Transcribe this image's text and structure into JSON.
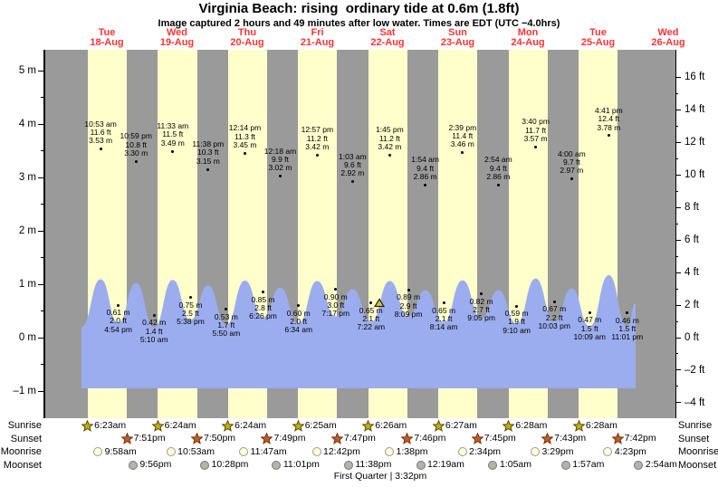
{
  "page": {
    "title": "Virginia Beach: rising  ordinary tide at 0.6m (1.8ft)",
    "subtitle": "Image captured 2 hours and 49 minutes after low water. Times are EDT (UTC −4.0hrs)"
  },
  "colors": {
    "night_band": "#9a9a9a",
    "day_band": "#ffffcc",
    "water": "#9badee",
    "day_label_red": "#ff3333",
    "sunrise_star_fill": "#c3ad0b",
    "sunrise_star_stroke": "#5a4a00",
    "sunset_star_fill": "#bf5f28",
    "sunset_star_stroke": "#73300d",
    "moonrise_fill": "#ffffd8",
    "moonrise_stroke": "#999999",
    "moonset_fill": "#b3b3ab",
    "moonset_stroke": "#777777",
    "now_marker_fill": "#d8c430"
  },
  "chart_data": {
    "type": "area",
    "title": "Virginia Beach: rising ordinary tide at 0.6m (1.8ft)",
    "ylabel_left": "meters",
    "ylabel_right": "feet",
    "y_axis_left": {
      "unit": "m",
      "major_ticks": [
        5,
        4,
        3,
        2,
        1,
        0,
        -1
      ],
      "minor_ticks": [
        4.5,
        3.5,
        2.5,
        1.5,
        0.5,
        -0.5
      ]
    },
    "y_axis_right": {
      "unit": "ft",
      "major_ticks": [
        16,
        14,
        12,
        10,
        8,
        6,
        4,
        2,
        0,
        -2,
        -4
      ],
      "minor_ticks": [
        15,
        13,
        11,
        9,
        7,
        5,
        3,
        1,
        -1,
        -3
      ]
    },
    "days": [
      {
        "name": "Tue",
        "date": "18-Aug"
      },
      {
        "name": "Wed",
        "date": "19-Aug"
      },
      {
        "name": "Thu",
        "date": "20-Aug"
      },
      {
        "name": "Fri",
        "date": "21-Aug"
      },
      {
        "name": "Sat",
        "date": "22-Aug"
      },
      {
        "name": "Sun",
        "date": "23-Aug"
      },
      {
        "name": "Mon",
        "date": "24-Aug"
      },
      {
        "name": "Tue",
        "date": "25-Aug"
      },
      {
        "name": "Wed",
        "date": "26-Aug"
      }
    ],
    "high_tides": [
      {
        "day": 0,
        "time": "10:53 am",
        "t": 10.883,
        "ft_label": "11.6 ft",
        "m_label": "3.53 m",
        "m": 3.53
      },
      {
        "day": 0,
        "time": "10:59 pm",
        "t": 22.983,
        "ft_label": "10.8 ft",
        "m_label": "3.30 m",
        "m": 3.3
      },
      {
        "day": 1,
        "time": "11:33 am",
        "t": 11.55,
        "ft_label": "11.5 ft",
        "m_label": "3.49 m",
        "m": 3.49
      },
      {
        "day": 1,
        "time": "11:38 pm",
        "t": 23.633,
        "ft_label": "10.3 ft",
        "m_label": "3.15 m",
        "m": 3.15
      },
      {
        "day": 2,
        "time": "12:14 pm",
        "t": 12.233,
        "ft_label": "11.3 ft",
        "m_label": "3.45 m",
        "m": 3.45
      },
      {
        "day": 3,
        "time": "12:18 am",
        "t": 0.3,
        "ft_label": "9.9 ft",
        "m_label": "3.02 m",
        "m": 3.02
      },
      {
        "day": 3,
        "time": "12:57 pm",
        "t": 12.95,
        "ft_label": "11.2 ft",
        "m_label": "3.42 m",
        "m": 3.42
      },
      {
        "day": 4,
        "time": "1:03 am",
        "t": 1.05,
        "ft_label": "9.6 ft",
        "m_label": "2.92 m",
        "m": 2.92
      },
      {
        "day": 4,
        "time": "1:45 pm",
        "t": 13.75,
        "ft_label": "11.2 ft",
        "m_label": "3.42 m",
        "m": 3.42
      },
      {
        "day": 5,
        "time": "1:54 am",
        "t": 1.9,
        "ft_label": "9.4 ft",
        "m_label": "2.86 m",
        "m": 2.86
      },
      {
        "day": 5,
        "time": "2:39 pm",
        "t": 14.65,
        "ft_label": "11.4 ft",
        "m_label": "3.46 m",
        "m": 3.46
      },
      {
        "day": 6,
        "time": "2:54 am",
        "t": 2.9,
        "ft_label": "9.4 ft",
        "m_label": "2.86 m",
        "m": 2.86
      },
      {
        "day": 6,
        "time": "3:40 pm",
        "t": 15.667,
        "ft_label": "11.7 ft",
        "m_label": "3.57 m",
        "m": 3.57
      },
      {
        "day": 7,
        "time": "4:00 am",
        "t": 4.0,
        "ft_label": "9.7 ft",
        "m_label": "2.97 m",
        "m": 2.97
      },
      {
        "day": 7,
        "time": "4:41 pm",
        "t": 16.683,
        "ft_label": "12.4 ft",
        "m_label": "3.78 m",
        "m": 3.78
      }
    ],
    "low_tides": [
      {
        "day": 0,
        "time": "4:54 pm",
        "t": 16.9,
        "m_label": "0.61 m",
        "ft_label": "2.0 ft",
        "m": 0.61
      },
      {
        "day": 1,
        "time": "5:10 am",
        "t": 5.167,
        "m_label": "0.42 m",
        "ft_label": "1.4 ft",
        "m": 0.42
      },
      {
        "day": 1,
        "time": "5:38 pm",
        "t": 17.633,
        "m_label": "0.75 m",
        "ft_label": "2.5 ft",
        "m": 0.75
      },
      {
        "day": 2,
        "time": "5:50 am",
        "t": 5.833,
        "m_label": "0.53 m",
        "ft_label": "1.7 ft",
        "m": 0.53
      },
      {
        "day": 2,
        "time": "6:26 pm",
        "t": 18.433,
        "m_label": "0.85 m",
        "ft_label": "2.8 ft",
        "m": 0.85
      },
      {
        "day": 3,
        "time": "6:34 am",
        "t": 6.567,
        "m_label": "0.60 m",
        "ft_label": "2.0 ft",
        "m": 0.6
      },
      {
        "day": 3,
        "time": "7:17 pm",
        "t": 19.283,
        "m_label": "0.90 m",
        "ft_label": "3.0 ft",
        "m": 0.9
      },
      {
        "day": 4,
        "time": "7:22 am",
        "t": 7.367,
        "m_label": "0.65 m",
        "ft_label": "2.1 ft",
        "m": 0.65
      },
      {
        "day": 4,
        "time": "8:09 pm",
        "t": 20.15,
        "m_label": "0.89 m",
        "ft_label": "2.9 ft",
        "m": 0.89
      },
      {
        "day": 5,
        "time": "8:14 am",
        "t": 8.233,
        "m_label": "0.65 m",
        "ft_label": "2.1 ft",
        "m": 0.65
      },
      {
        "day": 5,
        "time": "9:05 pm",
        "t": 21.083,
        "m_label": "0.82 m",
        "ft_label": "2.7 ft",
        "m": 0.82
      },
      {
        "day": 6,
        "time": "9:10 am",
        "t": 9.167,
        "m_label": "0.59 m",
        "ft_label": "1.9 ft",
        "m": 0.59
      },
      {
        "day": 6,
        "time": "10:03 pm",
        "t": 22.05,
        "m_label": "0.67 m",
        "ft_label": "2.2 ft",
        "m": 0.67
      },
      {
        "day": 7,
        "time": "10:09 am",
        "t": 10.15,
        "m_label": "0.47 m",
        "ft_label": "1.5 ft",
        "m": 0.47
      },
      {
        "day": 7,
        "time": "11:01 pm",
        "t": 23.017,
        "m_label": "0.46 m",
        "ft_label": "1.5 ft",
        "m": 0.46
      }
    ],
    "now_marker": {
      "day": 4,
      "t": 10.18
    },
    "moon_phase_label": "First Quarter | 3:32pm"
  },
  "almanac": {
    "rows": [
      {
        "label": "Sunrise",
        "icon": "sunrise-star",
        "events": [
          {
            "day": 0,
            "time": "6:23am",
            "t": 6.383
          },
          {
            "day": 1,
            "time": "6:24am",
            "t": 6.4
          },
          {
            "day": 2,
            "time": "6:24am",
            "t": 6.4
          },
          {
            "day": 3,
            "time": "6:25am",
            "t": 6.417
          },
          {
            "day": 4,
            "time": "6:26am",
            "t": 6.433
          },
          {
            "day": 5,
            "time": "6:27am",
            "t": 6.45
          },
          {
            "day": 6,
            "time": "6:28am",
            "t": 6.467
          },
          {
            "day": 7,
            "time": "6:28am",
            "t": 6.467
          }
        ]
      },
      {
        "label": "Sunset",
        "icon": "sunset-star",
        "events": [
          {
            "day": 0,
            "time": "7:51pm",
            "t": 19.85
          },
          {
            "day": 1,
            "time": "7:50pm",
            "t": 19.833
          },
          {
            "day": 2,
            "time": "7:49pm",
            "t": 19.817
          },
          {
            "day": 3,
            "time": "7:47pm",
            "t": 19.783
          },
          {
            "day": 4,
            "time": "7:46pm",
            "t": 19.767
          },
          {
            "day": 5,
            "time": "7:45pm",
            "t": 19.75
          },
          {
            "day": 6,
            "time": "7:43pm",
            "t": 19.717
          },
          {
            "day": 7,
            "time": "7:42pm",
            "t": 19.7
          }
        ]
      },
      {
        "label": "Moonrise",
        "icon": "moonrise-circle",
        "events": [
          {
            "day": 0,
            "time": "9:58am",
            "t": 9.967
          },
          {
            "day": 1,
            "time": "10:53am",
            "t": 10.883
          },
          {
            "day": 2,
            "time": "11:47am",
            "t": 11.783
          },
          {
            "day": 3,
            "time": "12:42pm",
            "t": 12.7
          },
          {
            "day": 4,
            "time": "1:38pm",
            "t": 13.633
          },
          {
            "day": 5,
            "time": "2:34pm",
            "t": 14.567
          },
          {
            "day": 6,
            "time": "3:29pm",
            "t": 15.483
          },
          {
            "day": 7,
            "time": "4:23pm",
            "t": 16.383
          }
        ]
      },
      {
        "label": "Moonset",
        "icon": "moonset-circle",
        "events": [
          {
            "day": 0,
            "time": "9:56pm",
            "t": 21.933
          },
          {
            "day": 1,
            "time": "10:28pm",
            "t": 22.467
          },
          {
            "day": 2,
            "time": "11:01pm",
            "t": 23.017
          },
          {
            "day": 3,
            "time": "11:38pm",
            "t": 23.633
          },
          {
            "day": 5,
            "time": "12:19am",
            "t": 0.317
          },
          {
            "day": 6,
            "time": "1:05am",
            "t": 1.083
          },
          {
            "day": 7,
            "time": "1:57am",
            "t": 1.95
          },
          {
            "day": 8,
            "time": "2:54am",
            "t": 2.9
          }
        ]
      }
    ]
  }
}
